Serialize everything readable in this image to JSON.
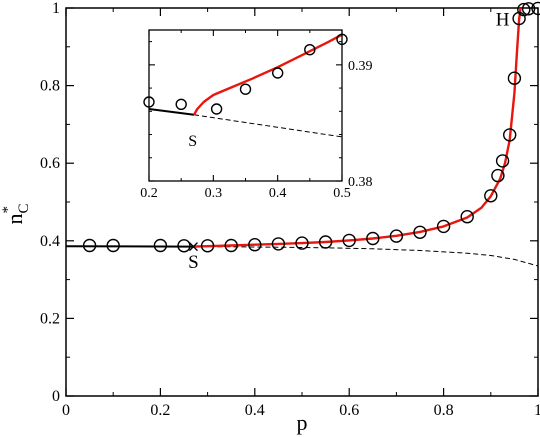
{
  "chart_data": [
    {
      "type": "line",
      "xlabel": "p",
      "ylabel_base": "n",
      "ylabel_sub": "C",
      "ylabel_sup": "*",
      "xlim": [
        0,
        1
      ],
      "ylim": [
        0,
        1
      ],
      "xticks": [
        0,
        0.2,
        0.4,
        0.6,
        0.8,
        1
      ],
      "xtick_labels": [
        "0",
        "0.2",
        "0.4",
        "0.6",
        "0.8",
        "1"
      ],
      "yticks": [
        0,
        0.2,
        0.4,
        0.6,
        0.8,
        1
      ],
      "ytick_labels": [
        "0",
        "0.2",
        "0.4",
        "0.6",
        "0.8",
        "1"
      ],
      "annotations": [
        {
          "text": "S",
          "x": 0.27,
          "y": 0.33
        },
        {
          "text": "H",
          "x": 0.925,
          "y": 0.955
        }
      ],
      "series": [
        {
          "kind": "solid-line",
          "color": "#000000",
          "x": [
            0,
            0.27
          ],
          "y": [
            0.386,
            0.385
          ]
        },
        {
          "kind": "dashed-line",
          "color": "#000000",
          "x": [
            0.27,
            0.35,
            0.45,
            0.55,
            0.65,
            0.75,
            0.85,
            0.9,
            0.95,
            1.0
          ],
          "y": [
            0.385,
            0.3845,
            0.3835,
            0.382,
            0.3795,
            0.375,
            0.368,
            0.362,
            0.352,
            0.335
          ]
        },
        {
          "kind": "solid-line",
          "color": "#e8160c",
          "x": [
            0.27,
            0.3,
            0.35,
            0.4,
            0.45,
            0.5,
            0.55,
            0.6,
            0.65,
            0.7,
            0.75,
            0.8,
            0.85,
            0.88,
            0.9,
            0.92,
            0.93,
            0.94,
            0.95,
            0.955,
            0.96,
            0.963
          ],
          "y": [
            0.385,
            0.386,
            0.388,
            0.39,
            0.392,
            0.394,
            0.397,
            0.401,
            0.406,
            0.413,
            0.423,
            0.437,
            0.46,
            0.485,
            0.515,
            0.56,
            0.6,
            0.66,
            0.78,
            0.88,
            0.97,
            1.0
          ]
        },
        {
          "kind": "circles",
          "color": "#000000",
          "x": [
            0.05,
            0.1,
            0.2,
            0.25,
            0.3,
            0.35,
            0.4,
            0.45,
            0.5,
            0.55,
            0.6,
            0.65,
            0.7,
            0.75,
            0.8,
            0.85,
            0.9,
            0.915,
            0.925,
            0.94,
            0.95,
            0.96,
            0.97,
            0.98,
            1.0
          ],
          "y": [
            0.388,
            0.388,
            0.388,
            0.387,
            0.387,
            0.388,
            0.39,
            0.392,
            0.394,
            0.397,
            0.401,
            0.406,
            0.412,
            0.422,
            0.437,
            0.462,
            0.516,
            0.568,
            0.606,
            0.673,
            0.819,
            0.973,
            0.996,
            0.998,
            0.999
          ]
        }
      ],
      "inset": {
        "xlim": [
          0.2,
          0.5
        ],
        "ylim": [
          0.38,
          0.393
        ],
        "xticks": [
          0.2,
          0.3,
          0.4,
          0.5
        ],
        "xtick_labels": [
          "0.2",
          "0.3",
          "0.4",
          "0.5"
        ],
        "yticks": [
          0.38,
          0.39
        ],
        "ytick_labels": [
          "0.38",
          "0.39"
        ],
        "annotations": [
          {
            "text": "S",
            "x": 0.268,
            "y": 0.3843
          }
        ],
        "series": [
          {
            "kind": "solid-line",
            "color": "#000000",
            "x": [
              0.2,
              0.27
            ],
            "y": [
              0.3862,
              0.3857
            ]
          },
          {
            "kind": "dashed-line",
            "color": "#000000",
            "x": [
              0.27,
              0.5
            ],
            "y": [
              0.3857,
              0.3838
            ]
          },
          {
            "kind": "solid-line",
            "color": "#e8160c",
            "x": [
              0.27,
              0.275,
              0.285,
              0.3,
              0.33,
              0.36,
              0.4,
              0.44,
              0.48,
              0.5
            ],
            "y": [
              0.3857,
              0.3862,
              0.3868,
              0.3874,
              0.3881,
              0.3888,
              0.3898,
              0.3909,
              0.392,
              0.3926
            ]
          },
          {
            "kind": "circles",
            "color": "#000000",
            "x": [
              0.2,
              0.25,
              0.305,
              0.35,
              0.4,
              0.45,
              0.5
            ],
            "y": [
              0.3868,
              0.3866,
              0.3862,
              0.3879,
              0.3893,
              0.3913,
              0.3922
            ]
          }
        ]
      }
    }
  ]
}
